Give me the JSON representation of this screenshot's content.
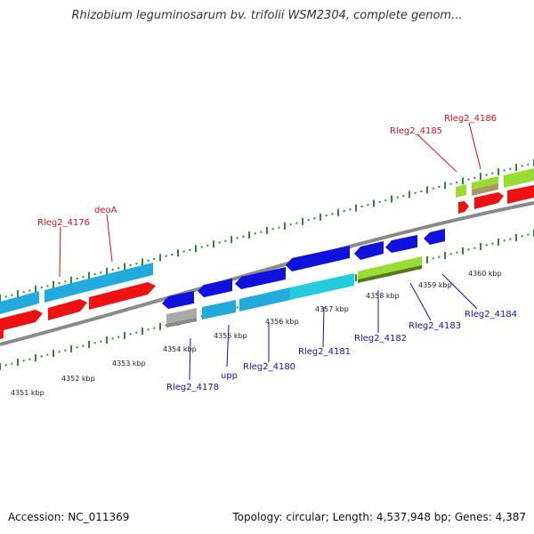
{
  "title": "Rhizobium leguminosarum bv. trifolii WSM2304, complete genom...",
  "footer": {
    "accession": "Accession: NC_011369",
    "stats": "Topology: circular; Length: 4,537,948 bp; Genes: 4,387"
  },
  "colors": {
    "backbone": "#8a8a8a",
    "tick": "#2e8b2e",
    "cds_red": "#ee1111",
    "cds_blue": "#1111dd",
    "cds_cyan": "#22aadd",
    "cds_green": "#99dd33",
    "cds_grey": "#aaaaaa",
    "cds_tan": "#aa9966",
    "label_red": "#dd1111",
    "label_blue": "#1111bb"
  },
  "ticks": [
    "4351 kbp",
    "4352 kbp",
    "4353 kbp",
    "4354 kbp",
    "4355 kbp",
    "4356 kbp",
    "4357 kbp",
    "4358 kbp",
    "4359 kbp",
    "4360 kbp"
  ],
  "gene_labels": {
    "forward": [
      "Rleg2_4176",
      "deoA",
      "Rleg2_4185",
      "Rleg2_4186"
    ],
    "reverse": [
      "Rleg2_4178",
      "upp",
      "Rleg2_4180",
      "Rleg2_4181",
      "Rleg2_4182",
      "Rleg2_4183",
      "Rleg2_4184"
    ]
  }
}
